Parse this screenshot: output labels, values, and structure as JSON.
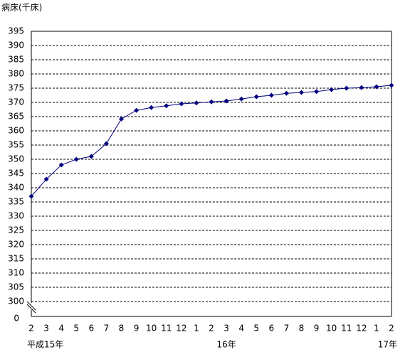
{
  "chart_data": {
    "type": "line",
    "y_label": "病床(千床)",
    "categories": [
      "2",
      "3",
      "4",
      "5",
      "6",
      "7",
      "8",
      "9",
      "10",
      "11",
      "12",
      "1",
      "2",
      "3",
      "4",
      "5",
      "6",
      "7",
      "8",
      "9",
      "10",
      "11",
      "12",
      "1",
      "2"
    ],
    "year_labels": [
      "平成15年",
      null,
      null,
      null,
      null,
      null,
      null,
      null,
      null,
      null,
      null,
      null,
      null,
      "16年",
      null,
      null,
      null,
      null,
      null,
      null,
      null,
      null,
      null,
      null,
      "17年"
    ],
    "series": [
      {
        "name": "病床",
        "color": "#000080",
        "values": [
          337,
          343,
          348,
          350,
          351,
          355.5,
          364.2,
          367.2,
          368.2,
          368.8,
          369.5,
          369.8,
          370.2,
          370.5,
          371.2,
          372,
          372.5,
          373.2,
          373.5,
          373.8,
          374.5,
          375,
          375.2,
          375.5,
          376
        ]
      }
    ],
    "ylim": [
      300,
      395
    ],
    "yticks": [
      300,
      305,
      310,
      315,
      320,
      325,
      330,
      335,
      340,
      345,
      350,
      355,
      360,
      365,
      370,
      375,
      380,
      385,
      390,
      395
    ],
    "y_origin": 0,
    "grid": true
  }
}
